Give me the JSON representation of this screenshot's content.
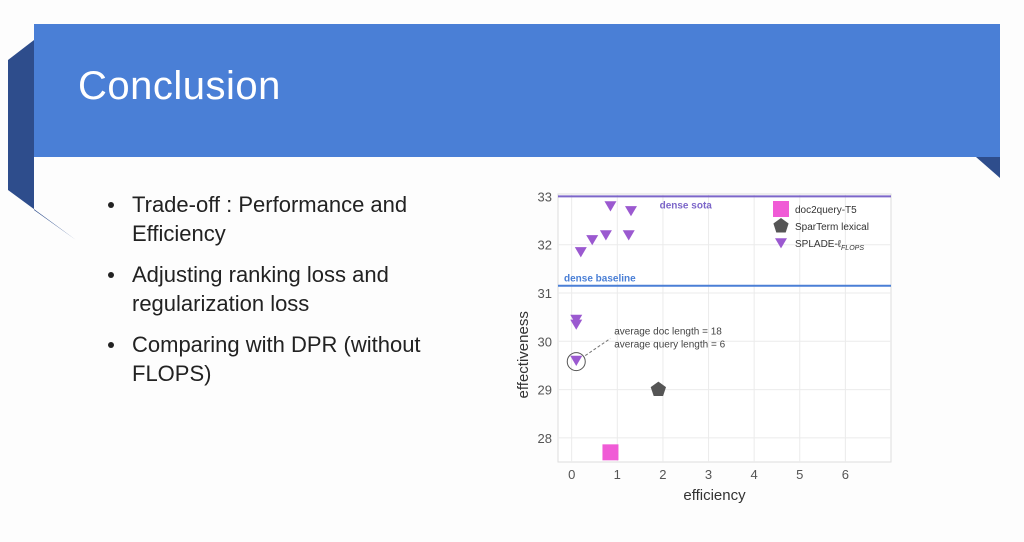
{
  "slide": {
    "title": "Conclusion",
    "bullets": [
      "Trade-off : Performance and Efficiency",
      "Adjusting ranking loss and regularization loss",
      "Comparing with DPR (without FLOPS)"
    ]
  },
  "colors": {
    "title_bar": "#4a7fd6",
    "ribbon_dark": "#2e4d8c",
    "splade": "#9b59d0",
    "doc2query": "#f05bd6",
    "sparterm": "#555555",
    "dense_sota_line": "#7c66c9",
    "dense_baseline_line": "#4a7fd6"
  },
  "chart_data": {
    "type": "scatter",
    "xlabel": "efficiency",
    "ylabel": "effectiveness",
    "xlim": [
      -0.3,
      7
    ],
    "ylim": [
      27.5,
      33.05
    ],
    "xticks": [
      0,
      1,
      2,
      3,
      4,
      5,
      6
    ],
    "yticks": [
      28,
      29,
      30,
      31,
      32,
      33
    ],
    "grid": true,
    "legend_position": "top-right",
    "series": [
      {
        "name": "doc2query-T5",
        "marker": "square",
        "points": [
          {
            "x": 0.85,
            "y": 27.7
          }
        ]
      },
      {
        "name": "SparTerm lexical",
        "marker": "pentagon",
        "points": [
          {
            "x": 1.9,
            "y": 29.0
          }
        ]
      },
      {
        "name": "SPLADE-ℓ",
        "name_subscript": "FLOPS",
        "marker": "triangle-down",
        "points": [
          {
            "x": 0.2,
            "y": 31.85
          },
          {
            "x": 0.45,
            "y": 32.1
          },
          {
            "x": 0.75,
            "y": 32.2
          },
          {
            "x": 0.85,
            "y": 32.8
          },
          {
            "x": 1.25,
            "y": 32.2
          },
          {
            "x": 1.3,
            "y": 32.7
          },
          {
            "x": 0.1,
            "y": 30.35
          },
          {
            "x": 0.1,
            "y": 30.45
          },
          {
            "x": 0.1,
            "y": 29.6
          }
        ]
      }
    ],
    "reference_lines": [
      {
        "label": "dense sota",
        "y": 33.0
      },
      {
        "label": "dense baseline",
        "y": 31.15
      }
    ],
    "annotation": {
      "lines": [
        "average doc length = 18",
        "average query length = 6"
      ],
      "target": {
        "x": 0.1,
        "y": 29.6
      }
    }
  }
}
